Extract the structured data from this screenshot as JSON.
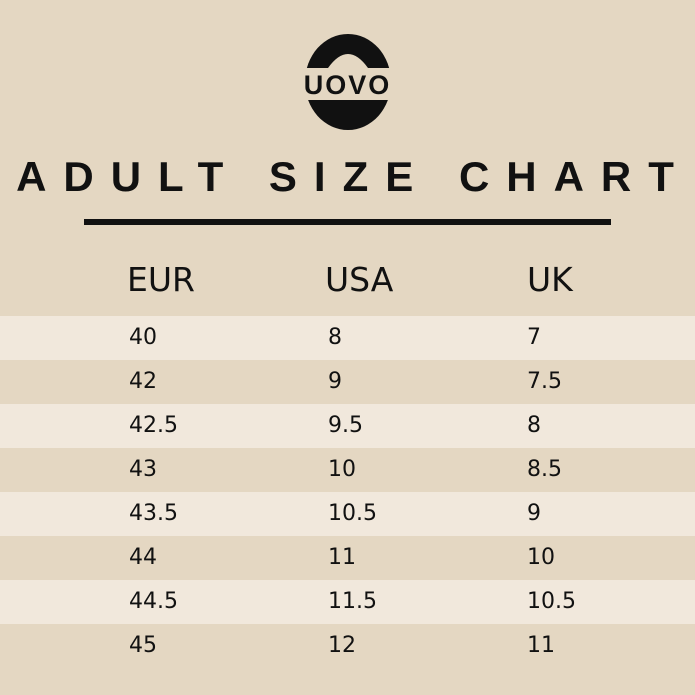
{
  "logo": {
    "text": "UOVO"
  },
  "title": "ADULT SIZE CHART",
  "colors": {
    "background": "#e4d7c2",
    "row_light": "#f1e8dc",
    "text": "#111111"
  },
  "table": {
    "headers": [
      "EUR",
      "USA",
      "UK"
    ],
    "rows": [
      [
        "40",
        "8",
        "7"
      ],
      [
        "42",
        "9",
        "7.5"
      ],
      [
        "42.5",
        "9.5",
        "8"
      ],
      [
        "43",
        "10",
        "8.5"
      ],
      [
        "43.5",
        "10.5",
        "9"
      ],
      [
        "44",
        "11",
        "10"
      ],
      [
        "44.5",
        "11.5",
        "10.5"
      ],
      [
        "45",
        "12",
        "11"
      ]
    ]
  }
}
